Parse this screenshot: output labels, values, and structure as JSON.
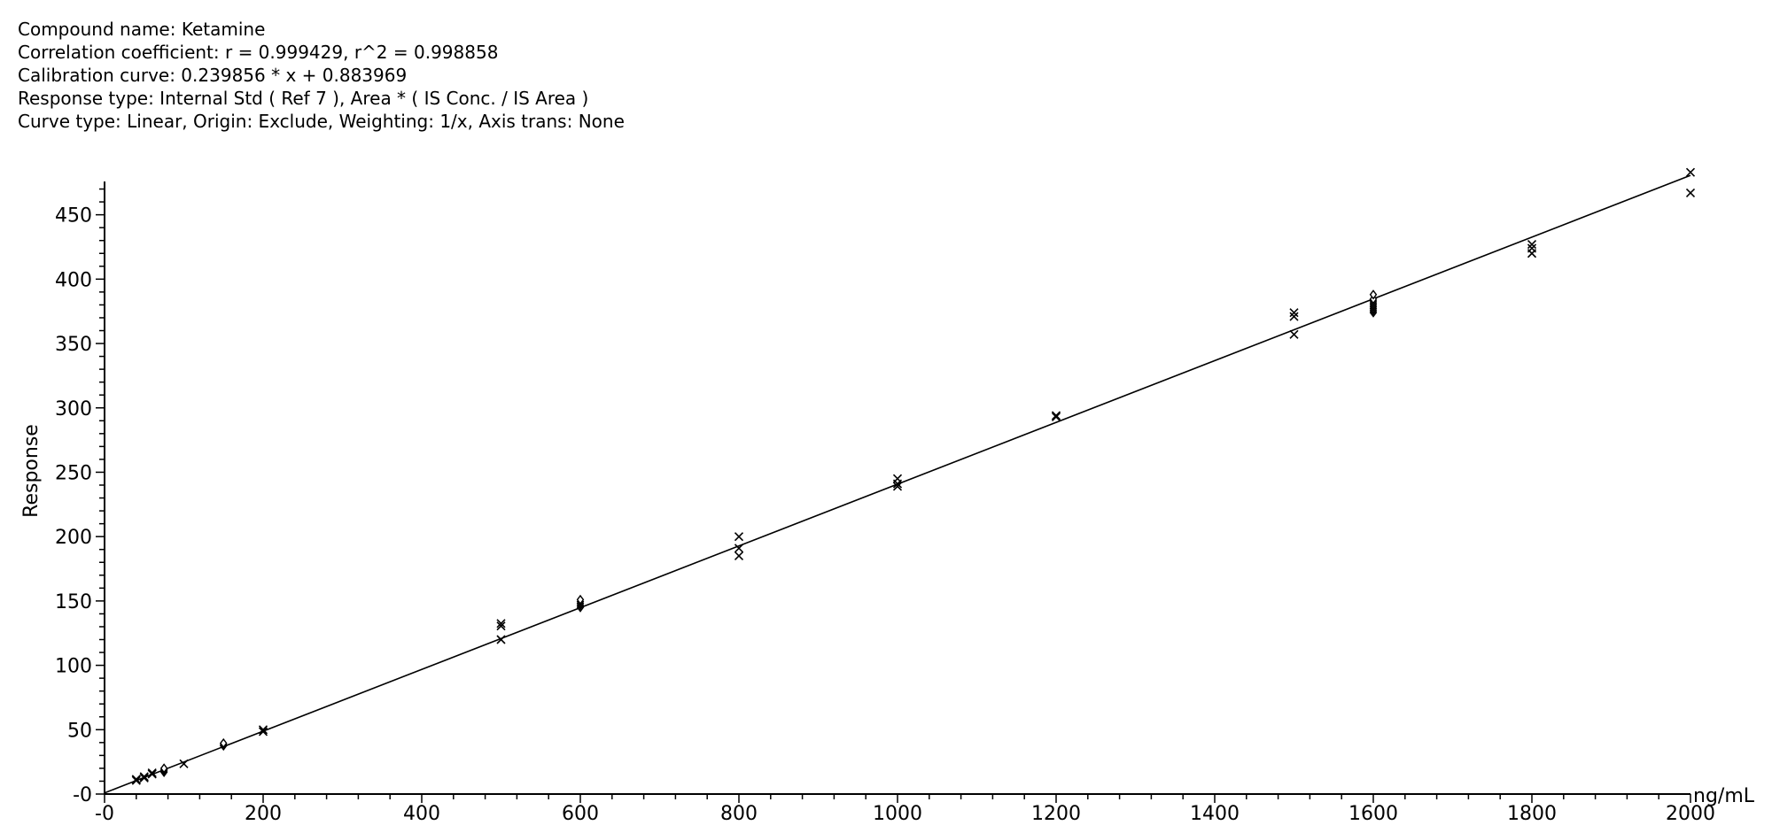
{
  "header": {
    "compound": "Compound name: Ketamine",
    "correlation": "Correlation coefficient: r = 0.999429, r^2 = 0.998858",
    "calibration": "Calibration curve: 0.239856 * x + 0.883969",
    "response_type": "Response type: Internal Std ( Ref 7 ), Area * ( IS Conc. / IS Area )",
    "curve_type": "Curve type: Linear, Origin: Exclude, Weighting: 1/x, Axis trans: None"
  },
  "chart_data": {
    "type": "scatter",
    "xlabel": "ng/mL",
    "ylabel": "Response",
    "xlim": [
      0,
      2000
    ],
    "ylim": [
      0,
      480
    ],
    "x_ticks": [
      0,
      200,
      400,
      600,
      800,
      1000,
      1200,
      1400,
      1600,
      1800,
      2000
    ],
    "x_tick_labels": [
      "-0",
      "200",
      "400",
      "600",
      "800",
      "1000",
      "1200",
      "1400",
      "1600",
      "1800",
      "2000"
    ],
    "y_ticks": [
      0,
      50,
      100,
      150,
      200,
      250,
      300,
      350,
      400,
      450
    ],
    "y_tick_labels": [
      "-0",
      "50",
      "100",
      "150",
      "200",
      "250",
      "300",
      "350",
      "400",
      "450"
    ],
    "fit_line": {
      "slope": 0.239856,
      "intercept": 0.883969
    },
    "series": [
      {
        "marker": "cross",
        "points": [
          [
            40,
            10.5
          ],
          [
            40,
            11.5
          ],
          [
            50,
            12.5
          ],
          [
            50,
            13.5
          ],
          [
            60,
            15.5
          ],
          [
            60,
            16.5
          ],
          [
            100,
            23.5
          ],
          [
            200,
            48.5
          ],
          [
            200,
            50
          ],
          [
            500,
            120
          ],
          [
            500,
            130.5
          ],
          [
            500,
            132.5
          ],
          [
            800,
            185
          ],
          [
            800,
            191
          ],
          [
            800,
            200
          ],
          [
            1000,
            239
          ],
          [
            1000,
            241
          ],
          [
            1000,
            245
          ],
          [
            1200,
            293
          ],
          [
            1200,
            294
          ],
          [
            1500,
            357
          ],
          [
            1500,
            371
          ],
          [
            1500,
            374
          ],
          [
            1800,
            420
          ],
          [
            1800,
            424
          ],
          [
            1800,
            427
          ],
          [
            2000,
            467
          ],
          [
            2000,
            483
          ]
        ]
      },
      {
        "marker": "diamond",
        "points": [
          [
            75,
            17
          ],
          [
            75,
            18
          ],
          [
            75,
            19
          ],
          [
            75,
            20
          ],
          [
            150,
            37.5
          ],
          [
            150,
            38.5
          ],
          [
            150,
            39.5
          ],
          [
            600,
            145
          ],
          [
            600,
            146.5
          ],
          [
            600,
            148
          ],
          [
            600,
            149.5
          ],
          [
            600,
            151
          ],
          [
            1600,
            374
          ],
          [
            1600,
            375.5
          ],
          [
            1600,
            377
          ],
          [
            1600,
            378.5
          ],
          [
            1600,
            380
          ],
          [
            1600,
            381.5
          ],
          [
            1600,
            383
          ],
          [
            1600,
            384.5
          ],
          [
            1600,
            388
          ]
        ]
      }
    ]
  }
}
